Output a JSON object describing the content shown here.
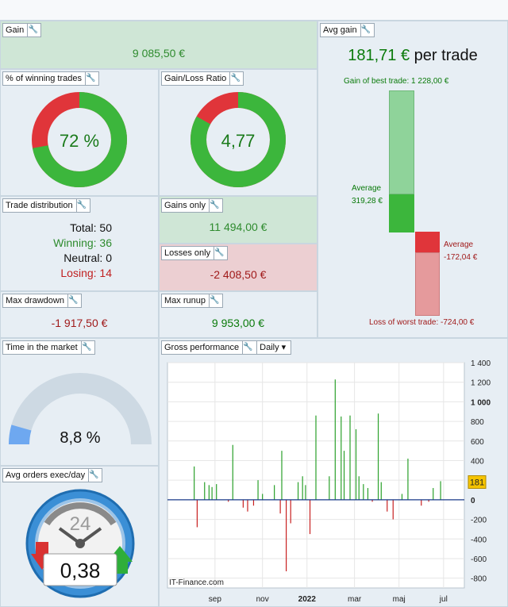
{
  "gain": {
    "title": "Gain",
    "value": "9 085,50 €"
  },
  "winning": {
    "title": "% of winning trades",
    "value": "72 %",
    "pct": 72
  },
  "ratio": {
    "title": "Gain/Loss Ratio",
    "value": "4,77",
    "pct": 83
  },
  "avg_gain": {
    "title": "Avg gain",
    "value": "181,71 €",
    "suffix": "per trade",
    "best_label": "Gain of best trade: 1 228,00 €",
    "avg_win_label": "Average",
    "avg_win_value": "319,28 €",
    "avg_loss_label": "Average",
    "avg_loss_value": "-172,04 €",
    "worst_label": "Loss of worst trade: -724,00 €"
  },
  "distribution": {
    "title": "Trade distribution",
    "total": "Total: 50",
    "winning": "Winning: 36",
    "neutral": "Neutral: 0",
    "losing": "Losing: 14"
  },
  "gains_only": {
    "title": "Gains only",
    "value": "11 494,00 €"
  },
  "losses_only": {
    "title": "Losses only",
    "value": "-2 408,50 €"
  },
  "drawdown": {
    "title": "Max drawdown",
    "value": "-1 917,50 €"
  },
  "runup": {
    "title": "Max runup",
    "value": "9 953,00 €"
  },
  "time_market": {
    "title": "Time in the market",
    "value": "8,8 %",
    "pct": 8.8
  },
  "avg_orders": {
    "title": "Avg orders exec/day",
    "value": "0,38",
    "dial": "24"
  },
  "gross": {
    "title": "Gross performance",
    "period": "Daily",
    "watermark": "IT-Finance.com",
    "current_value": "181"
  },
  "chart_data": {
    "type": "bar",
    "title": "Gross performance",
    "xlabel": "",
    "ylabel": "",
    "ylim": [
      -900,
      1400
    ],
    "ytick_labels": [
      "1 400",
      "1 200",
      "1 000",
      "800",
      "600",
      "400",
      "200",
      "0",
      "-200",
      "-400",
      "-600",
      "-800"
    ],
    "ytick_values": [
      1400,
      1200,
      1000,
      800,
      600,
      400,
      200,
      0,
      -200,
      -400,
      -600,
      -800
    ],
    "xtick_labels": [
      "sep",
      "nov",
      "2022",
      "mar",
      "maj",
      "jul"
    ],
    "xtick_positions": [
      0.16,
      0.32,
      0.47,
      0.63,
      0.78,
      0.93
    ],
    "values": [
      340,
      -280,
      180,
      150,
      130,
      160,
      -20,
      560,
      -80,
      -120,
      -60,
      200,
      60,
      150,
      -140,
      500,
      -730,
      -240,
      180,
      240,
      150,
      -350,
      860,
      240,
      1228,
      850,
      500,
      860,
      720,
      240,
      160,
      120,
      -20,
      880,
      180,
      -120,
      -200,
      60,
      420,
      -60,
      -20,
      120,
      190
    ],
    "positions": [
      0.09,
      0.1,
      0.125,
      0.14,
      0.15,
      0.165,
      0.205,
      0.22,
      0.255,
      0.27,
      0.29,
      0.305,
      0.32,
      0.36,
      0.38,
      0.385,
      0.4,
      0.415,
      0.44,
      0.455,
      0.465,
      0.48,
      0.5,
      0.545,
      0.565,
      0.585,
      0.595,
      0.615,
      0.635,
      0.645,
      0.66,
      0.675,
      0.69,
      0.71,
      0.72,
      0.74,
      0.76,
      0.79,
      0.81,
      0.855,
      0.88,
      0.895,
      0.92
    ]
  }
}
